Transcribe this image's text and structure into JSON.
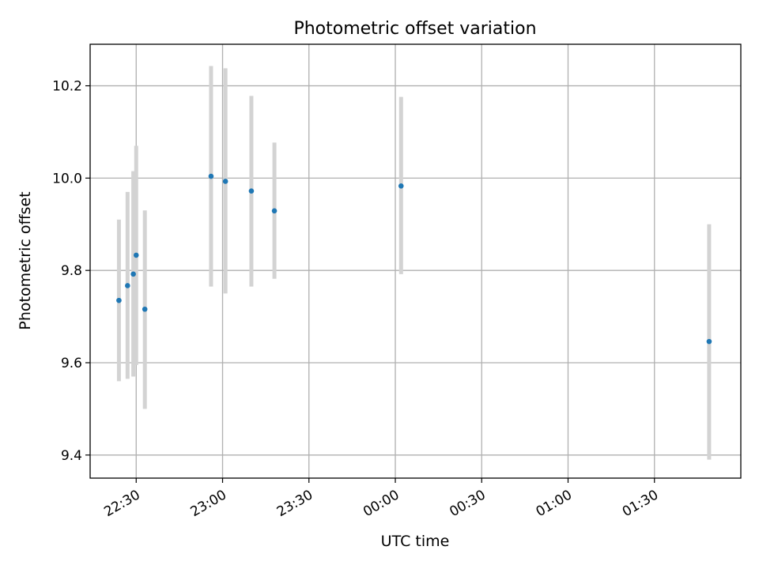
{
  "chart_data": {
    "type": "scatter",
    "title": "Photometric offset variation",
    "xlabel": "UTC time",
    "ylabel": "Photometric offset",
    "x_is_time": true,
    "x_tick_labels": [
      "22:30",
      "23:00",
      "23:30",
      "00:00",
      "00:30",
      "01:00",
      "01:30"
    ],
    "x_ticks": [
      "22:30",
      "23:00",
      "23:30",
      "24:00",
      "24:30",
      "25:00",
      "25:30"
    ],
    "xlim": [
      "22:14",
      "26:00"
    ],
    "ylim": [
      9.35,
      10.29
    ],
    "y_ticks": [
      9.4,
      9.6,
      9.8,
      10.0,
      10.2
    ],
    "y_tick_labels": [
      "9.4",
      "9.6",
      "9.8",
      "10.0",
      "10.2"
    ],
    "grid": true,
    "series": [
      {
        "points": [
          {
            "t": "22:24",
            "y": 9.735,
            "ylow": 9.56,
            "yhigh": 9.91
          },
          {
            "t": "22:27",
            "y": 9.767,
            "ylow": 9.565,
            "yhigh": 9.97
          },
          {
            "t": "22:29",
            "y": 9.792,
            "ylow": 9.57,
            "yhigh": 10.015
          },
          {
            "t": "22:30",
            "y": 9.833,
            "ylow": 9.595,
            "yhigh": 10.07
          },
          {
            "t": "22:33",
            "y": 9.716,
            "ylow": 9.5,
            "yhigh": 9.93
          },
          {
            "t": "22:56",
            "y": 10.004,
            "ylow": 9.765,
            "yhigh": 10.243
          },
          {
            "t": "23:01",
            "y": 9.993,
            "ylow": 9.75,
            "yhigh": 10.238
          },
          {
            "t": "23:10",
            "y": 9.972,
            "ylow": 9.765,
            "yhigh": 10.178
          },
          {
            "t": "23:18",
            "y": 9.929,
            "ylow": 9.782,
            "yhigh": 10.077
          },
          {
            "t": "24:02",
            "y": 9.983,
            "ylow": 9.792,
            "yhigh": 10.176
          },
          {
            "t": "25:49",
            "y": 9.646,
            "ylow": 9.39,
            "yhigh": 9.9
          }
        ]
      }
    ]
  },
  "colors": {
    "point": "#1f77b4",
    "errorbar": "#d3d3d3",
    "grid": "#b0b0b0",
    "axis": "#000000"
  }
}
